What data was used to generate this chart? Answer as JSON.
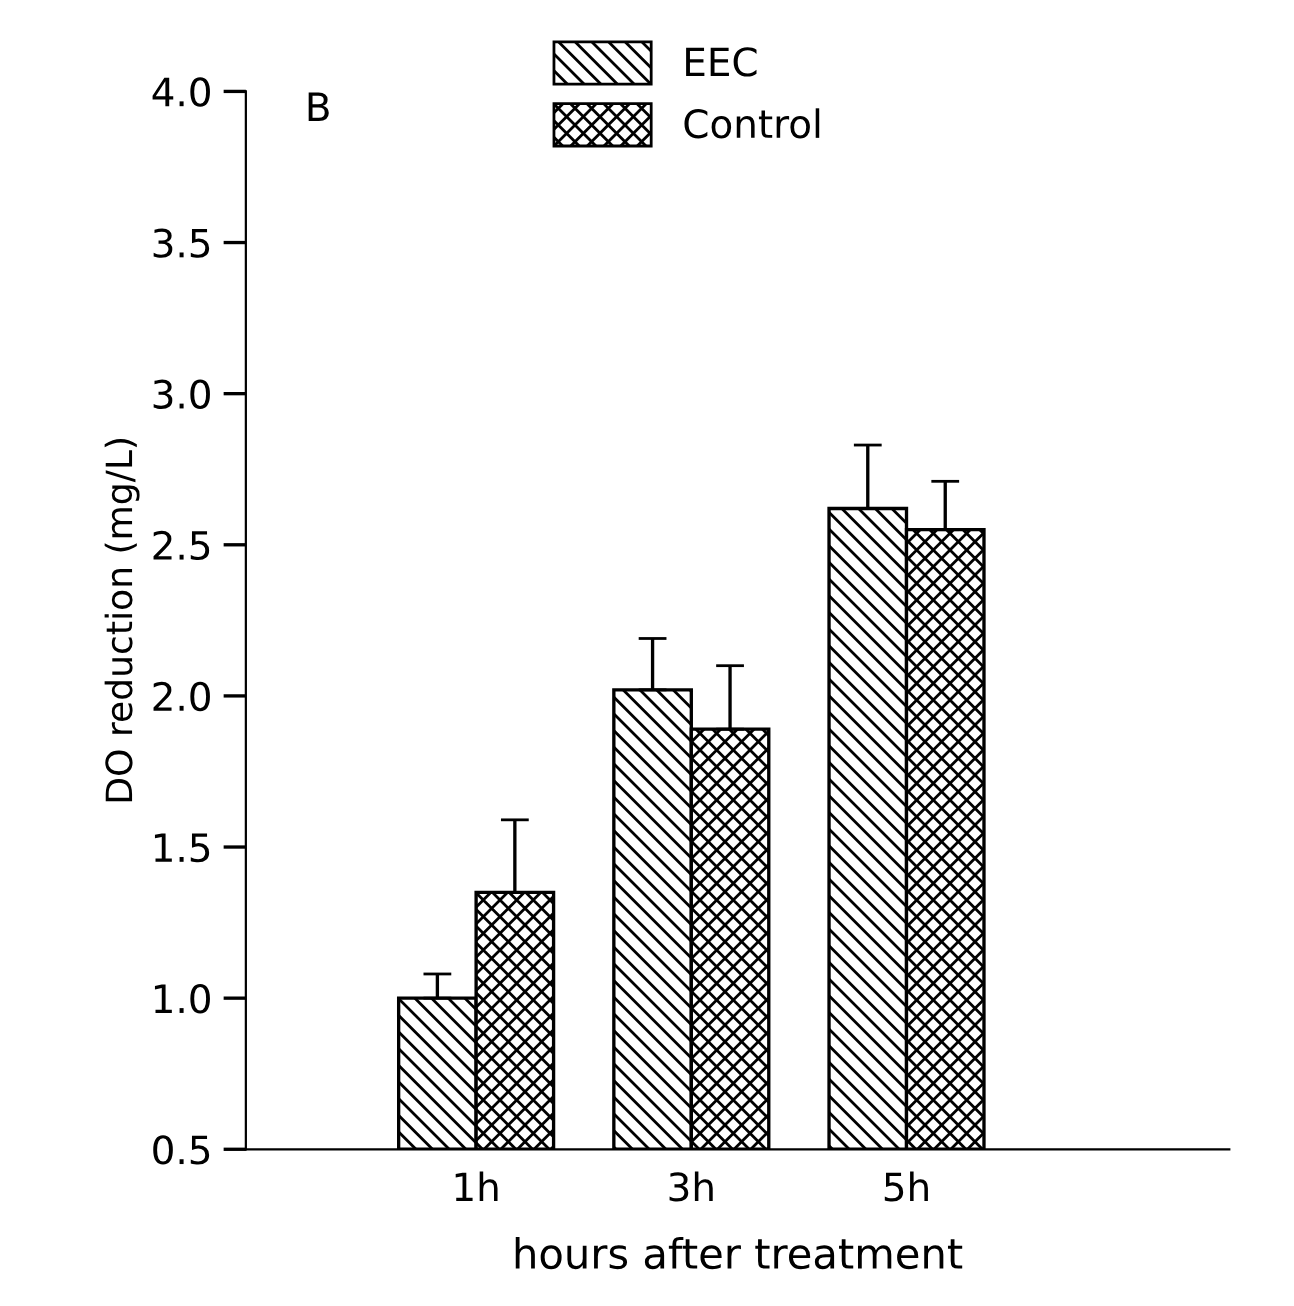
{
  "chart_data": {
    "type": "bar",
    "xlabel": "hours after treatment",
    "ylabel": "DO reduction (mg/L)",
    "categories": [
      "1h",
      "3h",
      "5h"
    ],
    "series": [
      {
        "name": "EEC",
        "color": "#000000",
        "values": [
          1.0,
          2.02,
          2.62
        ],
        "errors": [
          0.08,
          0.17,
          0.21
        ]
      },
      {
        "name": "Control",
        "color": "#000000",
        "values": [
          1.35,
          1.89,
          2.55
        ],
        "errors": [
          0.24,
          0.21,
          0.16
        ]
      }
    ],
    "ylim": [
      0.5,
      4.0
    ],
    "yticks": [
      0.5,
      {
        "value": 1,
        "label": "1.0"
      },
      1.5,
      {
        "value": 2,
        "label": "2.0"
      },
      2.5,
      {
        "value": 3,
        "label": "3.0"
      },
      3.5,
      {
        "value": 4,
        "label": "4.0"
      }
    ],
    "annotations": [
      "B"
    ],
    "legend": "top",
    "grid": false
  }
}
